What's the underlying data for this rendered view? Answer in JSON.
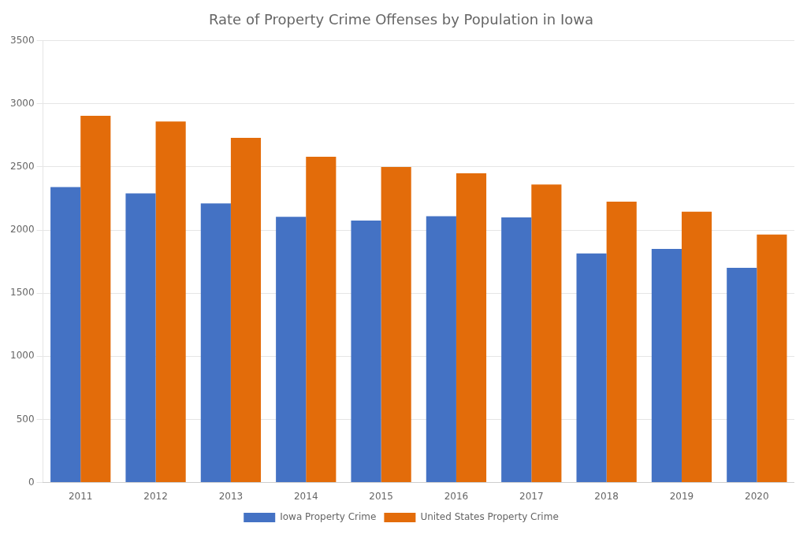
{
  "chart_data": {
    "type": "bar",
    "title": "Rate of Property Crime Offenses by Population in Iowa",
    "categories": [
      "2011",
      "2012",
      "2013",
      "2014",
      "2015",
      "2016",
      "2017",
      "2018",
      "2019",
      "2020"
    ],
    "series": [
      {
        "name": "Iowa Property Crime",
        "color": "#4472C4",
        "values": [
          2340,
          2290,
          2210,
          2105,
          2075,
          2110,
          2100,
          1815,
          1850,
          1700
        ]
      },
      {
        "name": "United States Property Crime",
        "color": "#E36C0A",
        "values": [
          2905,
          2860,
          2730,
          2580,
          2500,
          2450,
          2360,
          2225,
          2145,
          1965
        ]
      }
    ],
    "ylim": [
      0,
      3500
    ],
    "yticks": [
      0,
      500,
      1000,
      1500,
      2000,
      2500,
      3000,
      3500
    ],
    "grid": true,
    "legend": "bottom"
  }
}
